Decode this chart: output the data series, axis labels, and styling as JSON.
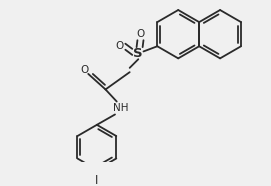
{
  "bg_color": "#f0f0f0",
  "line_color": "#2a2a2a",
  "line_width": 1.3,
  "font_size": 7.5,
  "figsize": [
    2.71,
    1.86
  ],
  "dpi": 100,
  "xlim": [
    0,
    271
  ],
  "ylim": [
    0,
    186
  ]
}
